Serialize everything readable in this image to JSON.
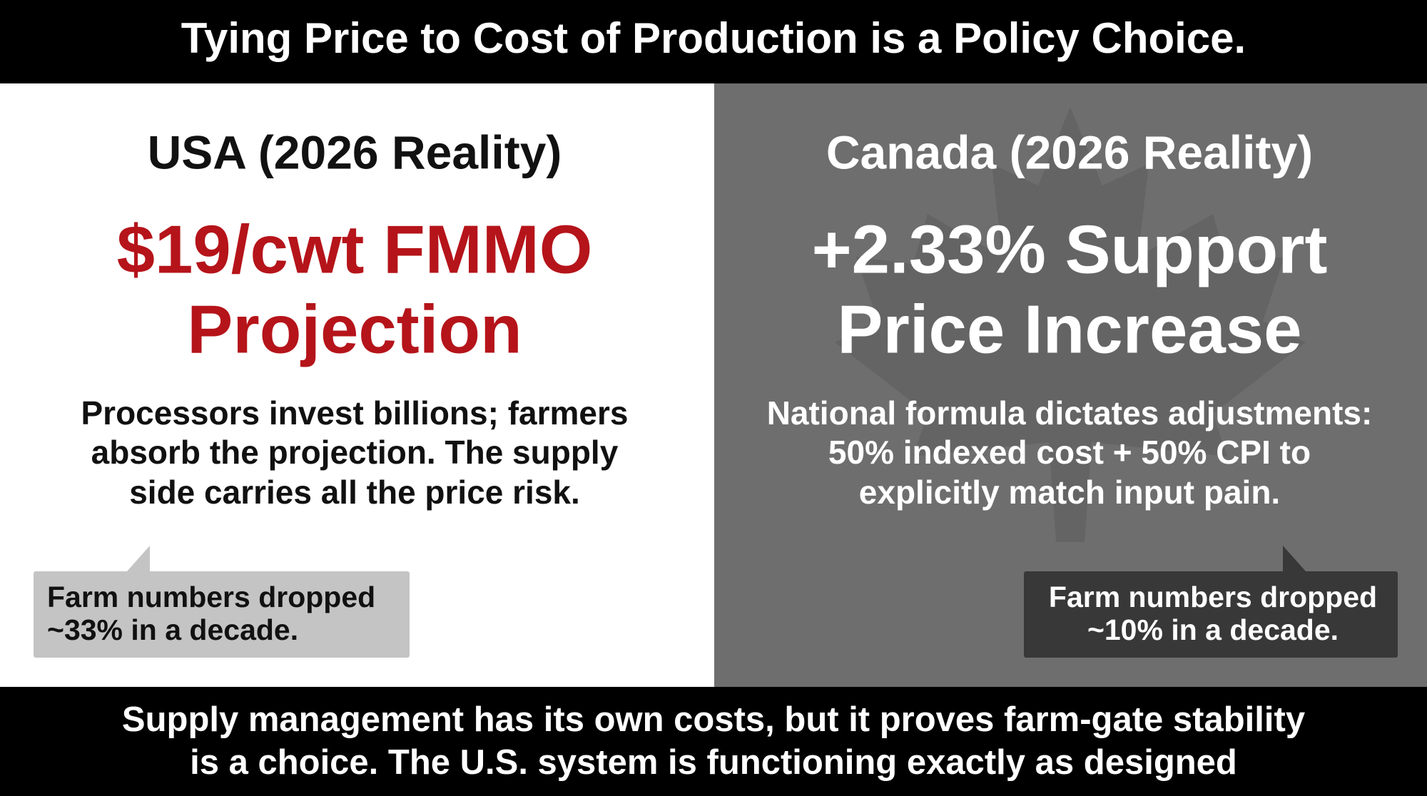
{
  "header": {
    "title": "Tying Price to Cost of Production is a Policy Choice."
  },
  "panels": [
    {
      "heading": "USA (2026 Reality)",
      "headline": [
        "$19/cwt FMMO",
        "Projection"
      ],
      "body": [
        "Processors invest billions; farmers",
        "absorb the projection. The supply",
        "side carries all the price risk."
      ],
      "callout": [
        "Farm numbers dropped",
        "~33% in a decade."
      ]
    },
    {
      "heading": "Canada (2026 Reality)",
      "headline": [
        "+2.33% Support",
        "Price Increase"
      ],
      "body": [
        "National formula dictates adjustments:",
        "50% indexed cost + 50% CPI to",
        "explicitly match input pain."
      ],
      "callout": [
        "Farm numbers dropped",
        "~10% in a decade."
      ]
    }
  ],
  "footer": {
    "lines": [
      "Supply management has its own costs, but it proves farm-gate stability",
      "is a choice. The U.S. system is functioning exactly as designed"
    ]
  }
}
